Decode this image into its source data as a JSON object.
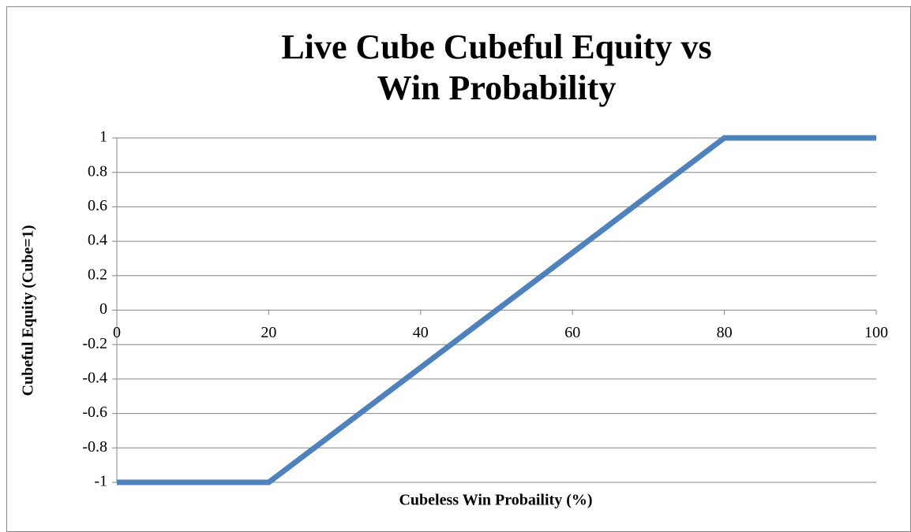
{
  "chart_data": {
    "type": "line",
    "title": "Live Cube Cubeful Equity vs Win Probability",
    "x_label": "Cubeless Win Probaility (%)",
    "y_label": "Cubeful Equity (Cube=1)",
    "x": [
      0,
      20,
      80,
      100
    ],
    "values": [
      -1,
      -1,
      1,
      1
    ],
    "color": "#4f81bd",
    "xlim": [
      0,
      100
    ],
    "xticks": [
      0,
      20,
      40,
      60,
      80,
      100
    ],
    "ylim": [
      -1,
      1
    ],
    "yticks": [
      -1,
      -0.8,
      -0.6,
      -0.4,
      -0.2,
      0,
      0.2,
      0.4,
      0.6,
      0.8,
      1
    ],
    "grid": true
  }
}
